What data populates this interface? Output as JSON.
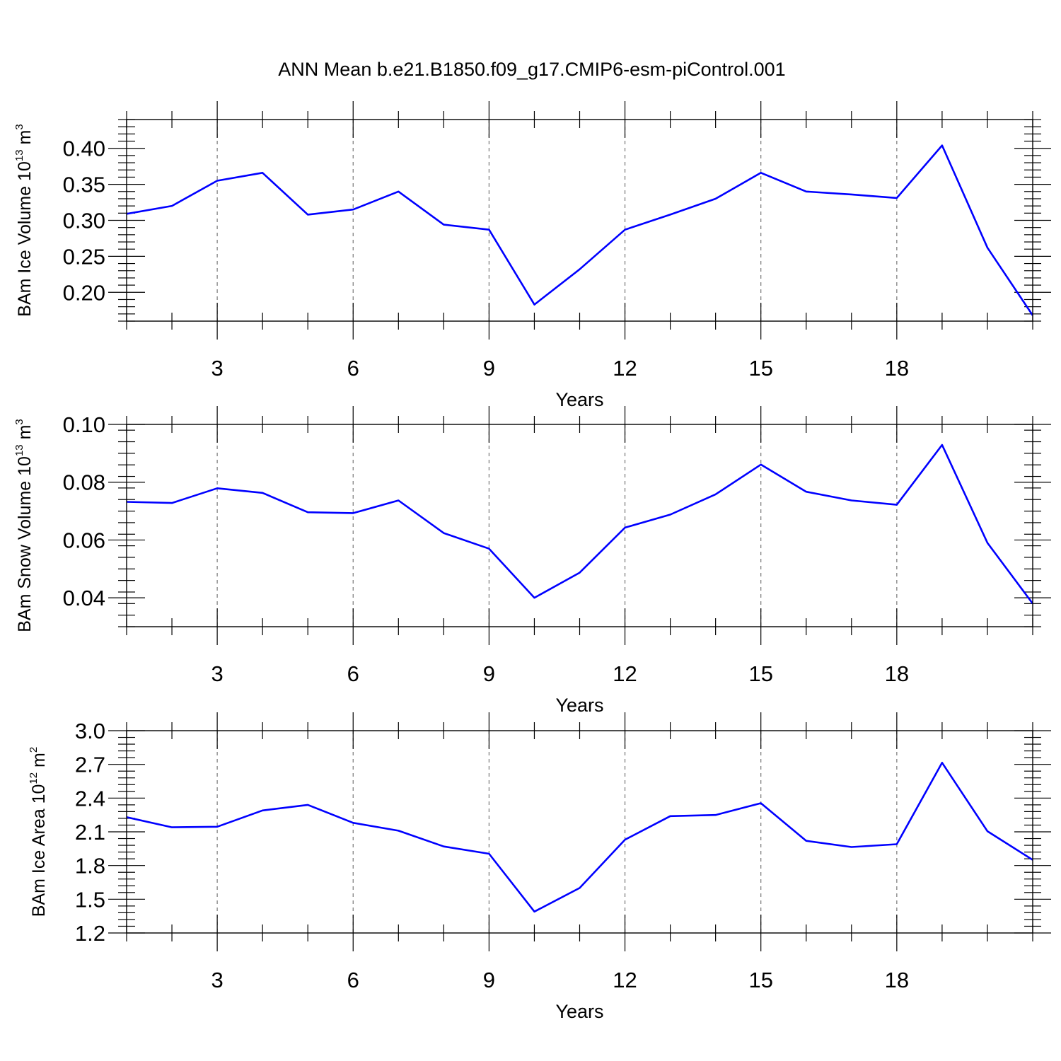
{
  "figure": {
    "title": "ANN Mean b.e21.B1850.f09_g17.CMIP6-esm-piControl.001"
  },
  "chart_data": [
    {
      "type": "line",
      "ylabel": {
        "base": "BAm Ice Volume 10",
        "exp": "13",
        "unit": " m",
        "unit_exp": "3"
      },
      "xlabel": "Years",
      "xlim": [
        1,
        21
      ],
      "ylim": [
        0.16,
        0.44
      ],
      "xticks": [
        3,
        6,
        9,
        12,
        15,
        18
      ],
      "xtick_labels": [
        "3",
        "6",
        "9",
        "12",
        "15",
        "18"
      ],
      "yticks": [
        0.2,
        0.25,
        0.3,
        0.35,
        0.4
      ],
      "ytick_labels": [
        "0.20",
        "0.25",
        "0.30",
        "0.35",
        "0.40"
      ],
      "grid": "vertical dashed at major x ticks",
      "line_color": "#0000ff",
      "x": [
        1,
        2,
        3,
        4,
        5,
        6,
        7,
        8,
        9,
        10,
        11,
        12,
        13,
        14,
        15,
        16,
        17,
        18,
        19,
        20,
        21
      ],
      "values": [
        0.309,
        0.32,
        0.355,
        0.366,
        0.308,
        0.315,
        0.34,
        0.294,
        0.287,
        0.183,
        0.232,
        0.287,
        0.308,
        0.33,
        0.366,
        0.34,
        0.336,
        0.331,
        0.404,
        0.262,
        0.168
      ]
    },
    {
      "type": "line",
      "ylabel": {
        "base": "BAm Snow Volume 10",
        "exp": "13",
        "unit": " m",
        "unit_exp": "3"
      },
      "xlabel": "Years",
      "xlim": [
        1,
        21
      ],
      "ylim": [
        0.03,
        0.1
      ],
      "xticks": [
        3,
        6,
        9,
        12,
        15,
        18
      ],
      "xtick_labels": [
        "3",
        "6",
        "9",
        "12",
        "15",
        "18"
      ],
      "yticks": [
        0.04,
        0.06,
        0.08,
        0.1
      ],
      "ytick_labels": [
        "0.04",
        "0.06",
        "0.08",
        "0.10"
      ],
      "grid": "vertical dashed at major x ticks",
      "line_color": "#0000ff",
      "x": [
        1,
        2,
        3,
        4,
        5,
        6,
        7,
        8,
        9,
        10,
        11,
        12,
        13,
        14,
        15,
        16,
        17,
        18,
        19,
        20,
        21
      ],
      "values": [
        0.0732,
        0.0728,
        0.0779,
        0.0763,
        0.0696,
        0.0693,
        0.0737,
        0.0624,
        0.057,
        0.04,
        0.0487,
        0.0643,
        0.0688,
        0.0758,
        0.0861,
        0.0767,
        0.0737,
        0.0722,
        0.0929,
        0.059,
        0.038
      ]
    },
    {
      "type": "line",
      "ylabel": {
        "base": "BAm Ice Area 10",
        "exp": "12",
        "unit": " m",
        "unit_exp": "2"
      },
      "xlabel": "Years",
      "xlim": [
        1,
        21
      ],
      "ylim": [
        1.2,
        3.0
      ],
      "xticks": [
        3,
        6,
        9,
        12,
        15,
        18
      ],
      "xtick_labels": [
        "3",
        "6",
        "9",
        "12",
        "15",
        "18"
      ],
      "yticks": [
        1.2,
        1.5,
        1.8,
        2.1,
        2.4,
        2.7,
        3.0
      ],
      "ytick_labels": [
        "1.2",
        "1.5",
        "1.8",
        "2.1",
        "2.4",
        "2.7",
        "3.0"
      ],
      "grid": "vertical dashed at major x ticks",
      "line_color": "#0000ff",
      "x": [
        1,
        2,
        3,
        4,
        5,
        6,
        7,
        8,
        9,
        10,
        11,
        12,
        13,
        14,
        15,
        16,
        17,
        18,
        19,
        20,
        21
      ],
      "values": [
        2.23,
        2.14,
        2.145,
        2.29,
        2.34,
        2.18,
        2.11,
        1.97,
        1.905,
        1.39,
        1.6,
        2.03,
        2.24,
        2.25,
        2.355,
        2.02,
        1.965,
        1.99,
        2.715,
        2.105,
        1.85
      ]
    }
  ]
}
